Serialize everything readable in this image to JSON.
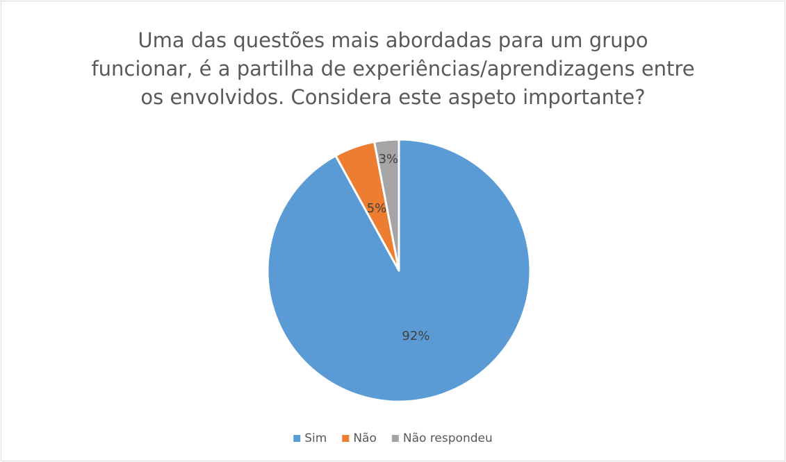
{
  "chart_data": {
    "type": "pie",
    "title": "Uma das questões mais abordadas para um grupo funcionar, é a partilha de experiências/aprendizagens entre os envolvidos. Considera este aspeto importante?",
    "categories": [
      "Sim",
      "Não",
      "Não respondeu"
    ],
    "values": [
      92,
      5,
      3
    ],
    "value_labels": [
      "92%",
      "5%",
      "3%"
    ],
    "colors": [
      "#5b9bd5",
      "#ed7d31",
      "#a5a5a5"
    ],
    "legend": "bottom"
  }
}
